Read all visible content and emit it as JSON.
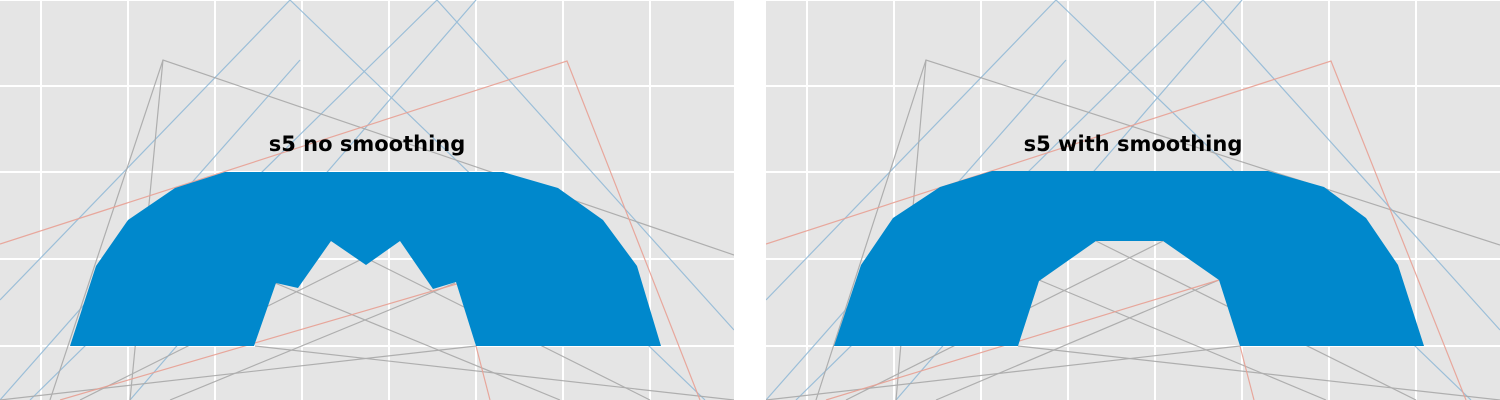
{
  "panels": [
    {
      "title": "s5 no smoothing",
      "fill_color": "#0088cc"
    },
    {
      "title": "s5 with smoothing",
      "fill_color": "#0088cc"
    }
  ],
  "colors": {
    "background": "#e5e5e5",
    "grid": "#ffffff",
    "construction_gray": "#a9a9a9",
    "construction_blue": "#8fb8d6",
    "construction_red": "#e8a093"
  }
}
